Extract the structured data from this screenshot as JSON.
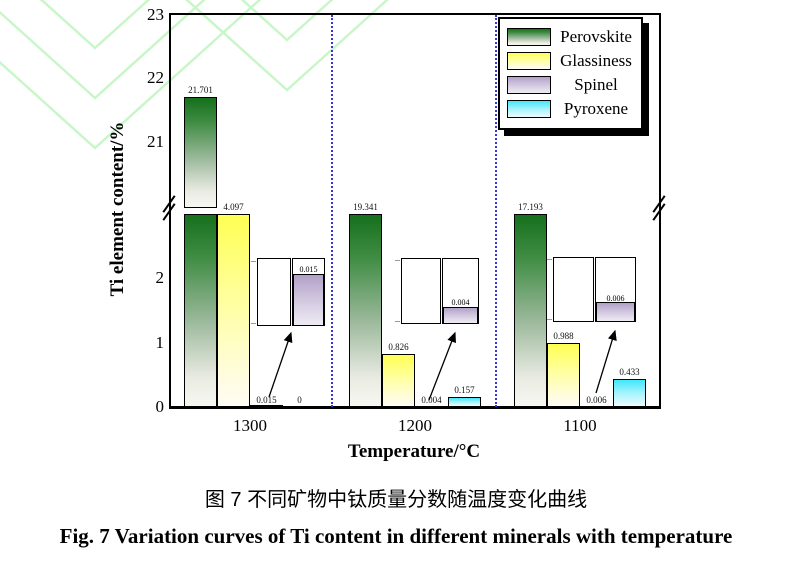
{
  "figure": {
    "caption_zh": "图 7 不同矿物中钛质量分数随温度变化曲线",
    "caption_en": "Fig. 7  Variation curves of Ti content in different minerals with temperature"
  },
  "chart_data": {
    "type": "bar",
    "title": "",
    "xlabel": "Temperature/°C",
    "ylabel": "Ti element content/%",
    "categories": [
      "1300",
      "1200",
      "1100"
    ],
    "series": [
      {
        "name": "Perovskite",
        "color_top": "#15701c",
        "values": [
          21.701,
          19.341,
          17.193
        ]
      },
      {
        "name": "Glassiness",
        "color_top": "#ffff54",
        "values": [
          4.097,
          0.826,
          0.988
        ]
      },
      {
        "name": "Spinel",
        "color_top": "#b1a0c7",
        "values": [
          0.015,
          0.004,
          0.006
        ]
      },
      {
        "name": "Pyroxene",
        "color_top": "#3fe7fa",
        "values": [
          0,
          0.157,
          0.433
        ]
      }
    ],
    "y_axis": {
      "broken": true,
      "lower_range": [
        0,
        3
      ],
      "upper_range": [
        20,
        23
      ],
      "upper_ticks": [
        "23",
        "22",
        "21"
      ],
      "lower_ticks": [
        "2",
        "1",
        "0"
      ]
    },
    "legend_position": "top-right",
    "grid": false,
    "group_separator_style": "blue dotted vertical lines",
    "magnifier_insets": [
      {
        "group": "1300",
        "mineral": "Spinel",
        "label": "0.015"
      },
      {
        "group": "1200",
        "mineral": "Spinel",
        "label": "0.004"
      },
      {
        "group": "1100",
        "mineral": "Spinel",
        "label": "0.006"
      }
    ]
  },
  "colors": {
    "separator_line": "#3535d8",
    "watermark": "#c9f6c9",
    "axis": "#000000",
    "legend_shadow": "#000000"
  }
}
